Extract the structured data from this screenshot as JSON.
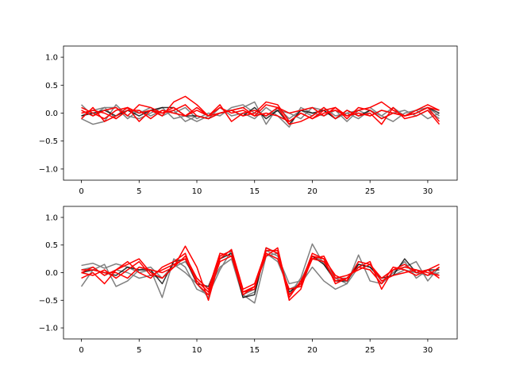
{
  "colors": {
    "dark_series": "#000000",
    "gray_series": "#808080",
    "red_series": "#ff0000",
    "axes": "#000000",
    "background": "#ffffff"
  },
  "chart_data": [
    {
      "type": "line",
      "position": "top",
      "xlim": [
        -1.55,
        32.55
      ],
      "ylim": [
        -1.2,
        1.2
      ],
      "xticks": [
        0,
        5,
        10,
        15,
        20,
        25,
        30
      ],
      "yticks": [
        -1.0,
        -0.5,
        0.0,
        0.5,
        1.0
      ],
      "xtick_labels": [
        "0",
        "5",
        "10",
        "15",
        "20",
        "25",
        "30"
      ],
      "ytick_labels": [
        "−1.0",
        "−0.5",
        "0.0",
        "0.5",
        "1.0"
      ],
      "x": [
        0,
        1,
        2,
        3,
        4,
        5,
        6,
        7,
        8,
        9,
        10,
        11,
        12,
        13,
        14,
        15,
        16,
        17,
        18,
        19,
        20,
        21,
        22,
        23,
        24,
        25,
        26,
        27,
        28,
        29,
        30,
        31
      ],
      "series": [
        {
          "group": "gray",
          "values": [
            -0.1,
            -0.2,
            -0.15,
            0.15,
            -0.05,
            -0.1,
            0.0,
            0.1,
            -0.1,
            -0.05,
            -0.15,
            -0.05,
            0.0,
            0.05,
            0.1,
            0.2,
            -0.2,
            0.1,
            -0.1,
            0.05,
            -0.05,
            0.1,
            -0.05,
            0.0,
            -0.1,
            0.05,
            -0.05,
            -0.15,
            0.0,
            0.05,
            0.1,
            -0.05
          ]
        },
        {
          "group": "gray",
          "values": [
            0.15,
            -0.05,
            0.1,
            -0.1,
            0.05,
            0.0,
            0.1,
            -0.05,
            0.05,
            -0.15,
            -0.05,
            -0.1,
            0.1,
            -0.05,
            0.0,
            -0.1,
            0.1,
            -0.05,
            -0.25,
            0.1,
            0.0,
            -0.05,
            0.05,
            -0.15,
            0.05,
            0.1,
            -0.05,
            0.1,
            -0.05,
            0.05,
            -0.1,
            0.0
          ]
        },
        {
          "group": "gray",
          "values": [
            -0.05,
            0.05,
            0.1,
            0.1,
            -0.1,
            0.05,
            -0.05,
            0.05,
            0.0,
            0.1,
            -0.1,
            0.0,
            -0.05,
            0.1,
            0.15,
            0.0,
            -0.05,
            0.05,
            0.0,
            -0.1,
            0.1,
            0.05,
            -0.1,
            0.0,
            0.05,
            -0.05,
            0.05,
            0.0,
            0.05,
            -0.05,
            0.05,
            -0.1
          ]
        },
        {
          "group": "dark",
          "values": [
            -0.05,
            0.0,
            0.05,
            -0.05,
            0.05,
            -0.05,
            0.05,
            0.1,
            0.1,
            -0.05,
            -0.05,
            -0.1,
            0.0,
            0.05,
            -0.05,
            0.1,
            -0.1,
            0.05,
            -0.2,
            0.05,
            0.0,
            0.05,
            -0.1,
            0.05,
            -0.05,
            0.05,
            -0.1,
            0.0,
            -0.05,
            0.0,
            0.1,
            0.0
          ]
        },
        {
          "group": "red",
          "values": [
            0.1,
            0.0,
            -0.1,
            0.05,
            0.1,
            0.0,
            0.05,
            -0.05,
            0.2,
            0.3,
            0.15,
            -0.05,
            0.0,
            0.05,
            -0.05,
            0.0,
            0.2,
            0.15,
            -0.15,
            0.0,
            -0.1,
            0.05,
            0.1,
            -0.05,
            0.05,
            0.1,
            0.2,
            0.05,
            -0.05,
            0.0,
            0.1,
            0.05
          ]
        },
        {
          "group": "red",
          "values": [
            -0.1,
            0.1,
            -0.15,
            -0.05,
            0.1,
            -0.15,
            0.05,
            0.0,
            0.1,
            -0.05,
            0.1,
            -0.05,
            0.15,
            -0.15,
            0.0,
            0.05,
            -0.05,
            0.1,
            -0.2,
            -0.15,
            -0.05,
            0.1,
            -0.1,
            0.05,
            -0.05,
            0.0,
            -0.2,
            0.1,
            -0.1,
            -0.05,
            0.05,
            -0.2
          ]
        },
        {
          "group": "red",
          "values": [
            0.05,
            -0.05,
            0.05,
            0.1,
            -0.05,
            0.15,
            0.1,
            0.0,
            0.05,
            0.15,
            -0.05,
            -0.1,
            0.0,
            0.05,
            0.1,
            -0.05,
            0.15,
            0.1,
            0.0,
            0.05,
            0.1,
            -0.05,
            0.1,
            -0.1,
            0.1,
            0.05,
            -0.1,
            0.0,
            -0.05,
            0.05,
            0.15,
            0.05
          ]
        },
        {
          "group": "red",
          "values": [
            0.0,
            0.05,
            0.0,
            -0.1,
            0.05,
            0.05,
            -0.1,
            0.05,
            0.0,
            -0.05,
            0.05,
            -0.05,
            0.1,
            0.0,
            0.05,
            -0.05,
            0.0,
            -0.05,
            -0.15,
            0.0,
            -0.1,
            0.0,
            0.05,
            -0.05,
            0.0,
            -0.05,
            0.05,
            0.0,
            -0.05,
            0.0,
            0.1,
            -0.15
          ]
        }
      ]
    },
    {
      "type": "line",
      "position": "bottom",
      "xlim": [
        -1.55,
        32.55
      ],
      "ylim": [
        -1.2,
        1.2
      ],
      "xticks": [
        0,
        5,
        10,
        15,
        20,
        25,
        30
      ],
      "yticks": [
        -1.0,
        -0.5,
        0.0,
        0.5,
        1.0
      ],
      "xtick_labels": [
        "0",
        "5",
        "10",
        "15",
        "20",
        "25",
        "30"
      ],
      "ytick_labels": [
        "−1.0",
        "−0.5",
        "0.0",
        "0.5",
        "1.0"
      ],
      "x": [
        0,
        1,
        2,
        3,
        4,
        5,
        6,
        7,
        8,
        9,
        10,
        11,
        12,
        13,
        14,
        15,
        16,
        17,
        18,
        19,
        20,
        21,
        22,
        23,
        24,
        25,
        26,
        27,
        28,
        29,
        30,
        31
      ],
      "series": [
        {
          "group": "gray",
          "values": [
            0.13,
            0.17,
            0.08,
            0.16,
            0.1,
            0.0,
            0.05,
            -0.45,
            0.25,
            0.1,
            -0.3,
            -0.4,
            0.05,
            0.4,
            -0.4,
            -0.55,
            0.3,
            0.35,
            -0.4,
            -0.1,
            0.52,
            0.15,
            -0.1,
            -0.2,
            0.32,
            -0.15,
            -0.2,
            0.0,
            0.1,
            0.2,
            -0.15,
            0.1
          ]
        },
        {
          "group": "gray",
          "values": [
            -0.25,
            0.05,
            0.15,
            -0.25,
            -0.15,
            0.05,
            0.1,
            -0.1,
            0.15,
            0.0,
            -0.2,
            -0.45,
            0.3,
            0.4,
            -0.4,
            -0.3,
            0.35,
            0.2,
            -0.3,
            -0.2,
            0.1,
            -0.15,
            -0.3,
            -0.2,
            0.1,
            0.05,
            -0.2,
            0.0,
            0.2,
            -0.1,
            0.05,
            -0.05
          ]
        },
        {
          "group": "gray",
          "values": [
            0.05,
            0.1,
            -0.05,
            0.05,
            0.0,
            -0.1,
            -0.05,
            -0.1,
            0.1,
            0.2,
            -0.1,
            -0.3,
            0.1,
            0.25,
            -0.45,
            -0.35,
            0.4,
            0.3,
            -0.2,
            -0.15,
            0.3,
            0.2,
            -0.1,
            -0.1,
            0.15,
            0.1,
            -0.15,
            -0.05,
            0.05,
            0.0,
            -0.05,
            0.0
          ]
        },
        {
          "group": "dark",
          "values": [
            0.0,
            0.05,
            0.0,
            -0.05,
            0.1,
            0.05,
            0.05,
            -0.2,
            0.2,
            0.25,
            -0.2,
            -0.25,
            0.25,
            0.35,
            -0.45,
            -0.4,
            0.45,
            0.35,
            -0.35,
            -0.2,
            0.3,
            0.15,
            -0.15,
            -0.15,
            0.15,
            0.1,
            -0.1,
            -0.05,
            0.25,
            0.0,
            0.05,
            0.05
          ]
        },
        {
          "group": "red",
          "values": [
            -0.1,
            0.0,
            -0.2,
            0.05,
            0.15,
            0.25,
            0.0,
            -0.1,
            0.1,
            0.48,
            0.1,
            -0.5,
            0.25,
            0.42,
            -0.3,
            -0.2,
            0.4,
            0.4,
            -0.5,
            -0.3,
            0.3,
            0.25,
            -0.2,
            -0.1,
            0.1,
            0.2,
            -0.3,
            0.05,
            0.15,
            0.0,
            0.05,
            0.15
          ]
        },
        {
          "group": "red",
          "values": [
            0.05,
            0.05,
            0.0,
            0.0,
            -0.1,
            0.1,
            0.05,
            0.0,
            0.1,
            0.3,
            -0.1,
            -0.3,
            0.35,
            0.3,
            -0.35,
            -0.3,
            0.45,
            0.35,
            -0.4,
            -0.2,
            0.35,
            0.25,
            -0.05,
            -0.15,
            0.2,
            0.15,
            -0.1,
            0.05,
            0.1,
            0.05,
            -0.05,
            0.1
          ]
        },
        {
          "group": "red",
          "values": [
            0.0,
            0.1,
            -0.05,
            0.05,
            0.2,
            0.0,
            -0.1,
            0.1,
            0.2,
            0.35,
            -0.2,
            -0.4,
            0.2,
            0.3,
            -0.4,
            -0.25,
            0.3,
            0.45,
            -0.45,
            -0.15,
            0.25,
            0.3,
            -0.1,
            -0.05,
            0.05,
            0.15,
            -0.15,
            -0.05,
            0.0,
            0.05,
            0.0,
            -0.05
          ]
        },
        {
          "group": "red",
          "values": [
            0.0,
            -0.05,
            0.05,
            -0.1,
            0.05,
            0.2,
            -0.05,
            0.05,
            0.15,
            0.25,
            -0.15,
            -0.35,
            0.3,
            0.4,
            -0.35,
            -0.25,
            0.35,
            0.25,
            -0.3,
            -0.25,
            0.25,
            0.2,
            -0.15,
            -0.1,
            0.1,
            0.05,
            -0.2,
            0.1,
            0.05,
            -0.05,
            0.05,
            -0.1
          ]
        }
      ]
    }
  ]
}
